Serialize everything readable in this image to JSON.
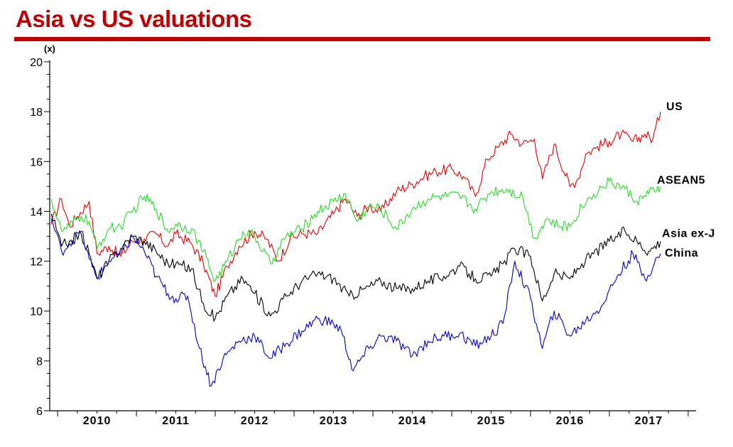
{
  "chart_data": {
    "type": "line",
    "title": "Asia vs US valuations",
    "ylabel": "(x)",
    "xlabel": "",
    "ylim": [
      6,
      20
    ],
    "yticks": [
      6,
      8,
      10,
      12,
      14,
      16,
      18,
      20
    ],
    "xticks": [
      "2010",
      "2011",
      "2012",
      "2013",
      "2014",
      "2015",
      "2016",
      "2017"
    ],
    "xlim": [
      2009.4,
      2017.6
    ],
    "grid": false,
    "legend": "direct labels at line ends",
    "series": [
      {
        "name": "US",
        "color": "#e60000",
        "x": [
          2009.42,
          2009.55,
          2009.65,
          2009.75,
          2009.9,
          2010.0,
          2010.15,
          2010.3,
          2010.45,
          2010.6,
          2010.75,
          2010.9,
          2011.0,
          2011.2,
          2011.35,
          2011.5,
          2011.65,
          2011.8,
          2012.0,
          2012.15,
          2012.3,
          2012.45,
          2012.6,
          2012.8,
          2013.0,
          2013.15,
          2013.3,
          2013.45,
          2013.6,
          2013.8,
          2014.0,
          2014.15,
          2014.3,
          2014.5,
          2014.65,
          2014.8,
          2014.95,
          2015.1,
          2015.25,
          2015.4,
          2015.55,
          2015.65,
          2015.8,
          2016.0,
          2016.1,
          2016.2,
          2016.35,
          2016.5,
          2016.65,
          2016.8,
          2016.95,
          2017.05,
          2017.15
        ],
        "y": [
          13.5,
          14.5,
          13.4,
          13.8,
          14.4,
          12.3,
          12.6,
          12.2,
          12.8,
          12.9,
          13.1,
          12.6,
          13.1,
          12.7,
          11.9,
          10.6,
          11.8,
          12.6,
          13.2,
          12.9,
          12.0,
          12.9,
          13.1,
          13.1,
          13.9,
          14.5,
          13.8,
          14.2,
          14.0,
          14.8,
          15.1,
          15.4,
          15.6,
          15.7,
          15.4,
          14.6,
          16.1,
          16.6,
          17.1,
          16.7,
          16.9,
          15.3,
          16.7,
          15.0,
          15.3,
          16.3,
          16.6,
          16.8,
          17.1,
          16.8,
          17.1,
          16.9,
          18.0
        ]
      },
      {
        "name": "ASEAN5",
        "color": "#22dd22",
        "x": [
          2009.42,
          2009.55,
          2009.65,
          2009.8,
          2009.9,
          2010.0,
          2010.15,
          2010.3,
          2010.45,
          2010.6,
          2010.75,
          2010.9,
          2011.0,
          2011.2,
          2011.35,
          2011.5,
          2011.65,
          2011.85,
          2012.0,
          2012.2,
          2012.4,
          2012.6,
          2012.8,
          2013.0,
          2013.15,
          2013.3,
          2013.45,
          2013.6,
          2013.8,
          2014.0,
          2014.2,
          2014.4,
          2014.6,
          2014.8,
          2015.0,
          2015.2,
          2015.4,
          2015.55,
          2015.7,
          2015.85,
          2016.0,
          2016.15,
          2016.3,
          2016.5,
          2016.7,
          2016.85,
          2017.0,
          2017.15
        ],
        "y": [
          14.5,
          13.2,
          13.4,
          13.8,
          13.6,
          12.5,
          13.3,
          13.4,
          14.0,
          14.6,
          14.1,
          13.2,
          13.5,
          13.3,
          12.4,
          11.2,
          12.0,
          13.2,
          13.0,
          11.9,
          13.0,
          13.3,
          14.0,
          14.4,
          14.7,
          13.6,
          14.2,
          14.1,
          13.3,
          14.1,
          14.5,
          14.6,
          14.6,
          14.1,
          14.8,
          14.9,
          14.6,
          12.9,
          13.7,
          13.4,
          13.4,
          14.2,
          14.7,
          15.2,
          14.9,
          14.4,
          14.7,
          15.0
        ]
      },
      {
        "name": "Asia ex-J",
        "color": "#000000",
        "x": [
          2009.42,
          2009.55,
          2009.65,
          2009.8,
          2009.9,
          2010.0,
          2010.15,
          2010.3,
          2010.45,
          2010.6,
          2010.75,
          2010.9,
          2011.0,
          2011.2,
          2011.35,
          2011.5,
          2011.65,
          2011.85,
          2012.0,
          2012.2,
          2012.4,
          2012.6,
          2012.8,
          2013.0,
          2013.2,
          2013.4,
          2013.6,
          2013.8,
          2014.0,
          2014.2,
          2014.4,
          2014.6,
          2014.8,
          2015.0,
          2015.15,
          2015.3,
          2015.5,
          2015.65,
          2015.8,
          2016.0,
          2016.15,
          2016.3,
          2016.5,
          2016.7,
          2016.85,
          2017.0,
          2017.15
        ],
        "y": [
          13.9,
          12.6,
          12.8,
          13.1,
          12.3,
          11.3,
          12.0,
          12.5,
          13.0,
          12.8,
          12.4,
          11.9,
          11.9,
          11.7,
          10.3,
          9.7,
          10.6,
          11.3,
          10.7,
          9.8,
          10.6,
          11.2,
          11.5,
          11.3,
          10.6,
          10.9,
          11.2,
          10.9,
          10.9,
          11.2,
          11.4,
          11.8,
          11.3,
          11.4,
          11.9,
          12.5,
          12.2,
          10.4,
          11.5,
          11.3,
          11.9,
          12.3,
          12.8,
          13.2,
          12.8,
          12.4,
          12.8
        ]
      },
      {
        "name": "China",
        "color": "#0000cc",
        "x": [
          2009.42,
          2009.55,
          2009.65,
          2009.8,
          2009.9,
          2010.0,
          2010.15,
          2010.3,
          2010.45,
          2010.6,
          2010.75,
          2010.9,
          2011.0,
          2011.15,
          2011.3,
          2011.45,
          2011.6,
          2011.8,
          2012.0,
          2012.2,
          2012.4,
          2012.6,
          2012.8,
          2013.0,
          2013.1,
          2013.25,
          2013.45,
          2013.6,
          2013.8,
          2014.0,
          2014.2,
          2014.4,
          2014.6,
          2014.8,
          2015.0,
          2015.15,
          2015.3,
          2015.5,
          2015.65,
          2015.8,
          2016.0,
          2016.2,
          2016.4,
          2016.6,
          2016.8,
          2016.95,
          2017.15
        ],
        "y": [
          13.7,
          12.4,
          12.7,
          13.2,
          12.1,
          11.3,
          12.0,
          12.3,
          13.0,
          12.4,
          11.4,
          10.7,
          10.5,
          10.6,
          8.5,
          7.0,
          8.1,
          8.8,
          9.0,
          8.1,
          8.7,
          9.2,
          9.7,
          9.5,
          9.2,
          7.6,
          8.5,
          9.0,
          8.8,
          8.2,
          8.8,
          9.0,
          9.1,
          8.6,
          9.0,
          9.5,
          12.0,
          10.5,
          8.5,
          10.0,
          9.0,
          9.6,
          10.2,
          11.4,
          12.3,
          11.3,
          12.3
        ]
      }
    ]
  }
}
